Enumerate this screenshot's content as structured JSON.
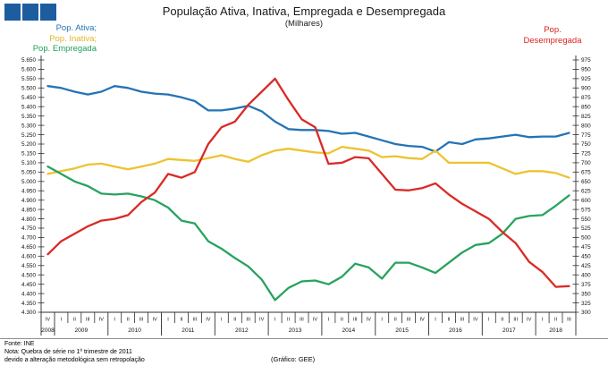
{
  "header": {
    "title": "População Ativa, Inativa, Empregada e Desempregada",
    "subtitle": "(Milhares)"
  },
  "legend": {
    "left": [
      {
        "label": "Pop. Ativa;",
        "color": "#2473b5"
      },
      {
        "label": "Pop. Inativa;",
        "color": "#e4b52a"
      },
      {
        "label": "Pop. Empregada",
        "color": "#1fa05c"
      }
    ],
    "right": {
      "label_line1": "Pop.",
      "label_line2": "Desempregada",
      "color": "#d8231f"
    }
  },
  "footer": {
    "source": "Fonte: INE",
    "note_line1": "Nota: Quebra de série no 1º trimestre de 2011",
    "note_line2": "devido a alteração metodológica sem retropolação",
    "credit": "(Gráfico: GEE)"
  },
  "chart_data": {
    "type": "line",
    "title": "População Ativa, Inativa, Empregada e Desempregada",
    "subtitle": "(Milhares)",
    "grid": false,
    "legend_position": "top-left and top-right",
    "left_axis": {
      "min": 4.3,
      "max": 5.65,
      "step": 0.05,
      "decimals": 3
    },
    "right_axis": {
      "min": 300,
      "max": 975,
      "step": 25,
      "decimals": 0
    },
    "x_axis": {
      "groups": [
        {
          "year": "2008",
          "quarters": [
            "IV"
          ]
        },
        {
          "year": "2009",
          "quarters": [
            "I",
            "II",
            "III",
            "IV"
          ]
        },
        {
          "year": "2010",
          "quarters": [
            "I",
            "II",
            "III",
            "IV"
          ]
        },
        {
          "year": "2011",
          "quarters": [
            "I",
            "II",
            "III",
            "IV"
          ]
        },
        {
          "year": "2012",
          "quarters": [
            "I",
            "II",
            "III",
            "IV"
          ]
        },
        {
          "year": "2013",
          "quarters": [
            "I",
            "II",
            "III",
            "IV"
          ]
        },
        {
          "year": "2014",
          "quarters": [
            "I",
            "II",
            "III",
            "IV"
          ]
        },
        {
          "year": "2015",
          "quarters": [
            "I",
            "II",
            "III",
            "IV"
          ]
        },
        {
          "year": "2016",
          "quarters": [
            "I",
            "II",
            "III",
            "IV"
          ]
        },
        {
          "year": "2017",
          "quarters": [
            "I",
            "II",
            "III",
            "IV"
          ]
        },
        {
          "year": "2018",
          "quarters": [
            "I",
            "II",
            "III"
          ]
        }
      ]
    },
    "series": [
      {
        "id": "pop-ativa",
        "name": "Pop. Ativa",
        "axis": "left",
        "color": "#2473b5",
        "values": [
          5.51,
          5.5,
          5.48,
          5.465,
          5.48,
          5.51,
          5.5,
          5.48,
          5.47,
          5.465,
          5.45,
          5.43,
          5.38,
          5.38,
          5.39,
          5.405,
          5.375,
          5.32,
          5.28,
          5.275,
          5.275,
          5.27,
          5.255,
          5.26,
          5.24,
          5.22,
          5.2,
          5.19,
          5.185,
          5.16,
          5.21,
          5.2,
          5.225,
          5.23,
          5.24,
          5.25,
          5.237,
          5.24,
          5.24,
          5.26
        ]
      },
      {
        "id": "pop-inativa",
        "name": "Pop. Inativa",
        "axis": "left",
        "color": "#edc32f",
        "values": [
          5.04,
          5.055,
          5.07,
          5.09,
          5.095,
          5.08,
          5.065,
          5.08,
          5.095,
          5.12,
          5.115,
          5.11,
          5.125,
          5.14,
          5.12,
          5.105,
          5.14,
          5.165,
          5.175,
          5.165,
          5.155,
          5.15,
          5.185,
          5.175,
          5.165,
          5.13,
          5.135,
          5.125,
          5.12,
          5.165,
          5.1,
          5.1,
          5.1,
          5.1,
          5.07,
          5.04,
          5.055,
          5.055,
          5.045,
          5.02
        ]
      },
      {
        "id": "pop-empregada",
        "name": "Pop. Empregada",
        "axis": "left",
        "color": "#27a35e",
        "values": [
          5.08,
          5.04,
          5.0,
          4.975,
          4.935,
          4.93,
          4.935,
          4.92,
          4.9,
          4.86,
          4.79,
          4.775,
          4.68,
          4.64,
          4.59,
          4.545,
          4.475,
          4.365,
          4.43,
          4.465,
          4.47,
          4.45,
          4.49,
          4.56,
          4.54,
          4.48,
          4.565,
          4.565,
          4.54,
          4.51,
          4.565,
          4.62,
          4.66,
          4.67,
          4.72,
          4.8,
          4.815,
          4.82,
          4.87,
          4.925
        ]
      },
      {
        "id": "pop-desempregada",
        "name": "Pop. Desempregada",
        "axis": "right",
        "color": "#da2a25",
        "values": [
          455,
          490,
          510,
          530,
          545,
          550,
          560,
          595,
          620,
          670,
          660,
          675,
          750,
          795,
          810,
          855,
          890,
          925,
          868,
          816,
          795,
          697,
          700,
          715,
          712,
          670,
          628,
          626,
          632,
          645,
          615,
          590,
          570,
          550,
          515,
          485,
          435,
          408,
          368,
          370
        ]
      }
    ]
  }
}
